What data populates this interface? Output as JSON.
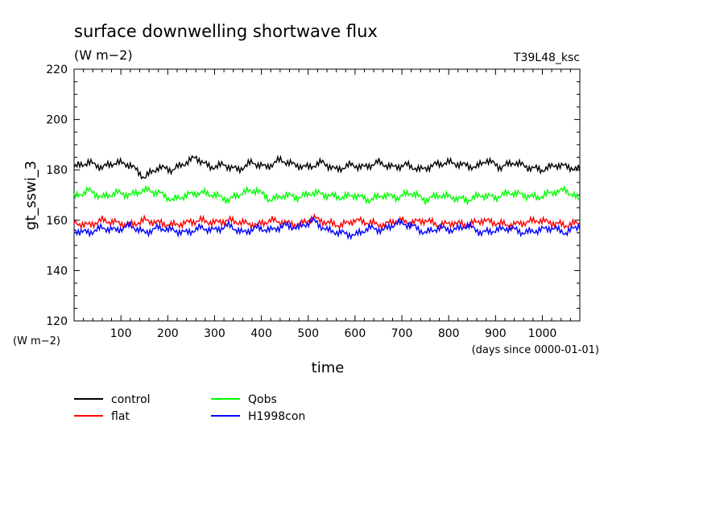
{
  "chart_data": {
    "type": "line",
    "title": "surface downwelling shortwave flux",
    "subtitle": "(W m−2)",
    "run_label": "T39L48_ksc",
    "xlabel": "time",
    "xunits": "(days since 0000-01-01)",
    "ylabel": "gt_sswi_3",
    "yunits": "(W m−2)",
    "xlim": [
      0,
      1080
    ],
    "ylim": [
      120,
      220
    ],
    "xticks": [
      100,
      200,
      300,
      400,
      500,
      600,
      700,
      800,
      900,
      1000
    ],
    "yticks": [
      120,
      140,
      160,
      180,
      200,
      220
    ],
    "grid": false,
    "legend_position": "bottom-left",
    "series": [
      {
        "name": "control",
        "color": "#000000",
        "x": [
          0,
          30,
          60,
          90,
          120,
          150,
          180,
          210,
          240,
          260,
          290,
          320,
          350,
          380,
          410,
          440,
          470,
          500,
          530,
          560,
          590,
          620,
          650,
          680,
          710,
          740,
          770,
          800,
          830,
          860,
          880,
          910,
          940,
          970,
          1000,
          1030,
          1060,
          1080
        ],
        "values": [
          181,
          183,
          181,
          183,
          182,
          177,
          181,
          180,
          183,
          185,
          181,
          182,
          180,
          183,
          181,
          184,
          182,
          181,
          183,
          180,
          182,
          181,
          183,
          181,
          182,
          180,
          182,
          183,
          182,
          181,
          184,
          181,
          183,
          181,
          180,
          182,
          181,
          180
        ]
      },
      {
        "name": "Qobs",
        "color": "#00ff00",
        "x": [
          0,
          30,
          60,
          90,
          120,
          150,
          180,
          210,
          240,
          270,
          300,
          330,
          360,
          390,
          420,
          450,
          480,
          510,
          540,
          570,
          600,
          630,
          660,
          690,
          720,
          750,
          780,
          810,
          840,
          870,
          900,
          930,
          960,
          990,
          1020,
          1050,
          1080
        ],
        "values": [
          169,
          172,
          169,
          171,
          170,
          172,
          171,
          168,
          170,
          171,
          170,
          168,
          171,
          172,
          168,
          170,
          169,
          171,
          170,
          169,
          170,
          168,
          170,
          169,
          171,
          168,
          170,
          169,
          168,
          170,
          169,
          171,
          170,
          169,
          171,
          172,
          168
        ]
      },
      {
        "name": "flat",
        "color": "#ff0000",
        "x": [
          0,
          30,
          60,
          90,
          120,
          150,
          180,
          210,
          240,
          270,
          300,
          330,
          360,
          390,
          420,
          450,
          480,
          510,
          540,
          570,
          600,
          630,
          660,
          690,
          720,
          750,
          780,
          810,
          840,
          870,
          900,
          930,
          960,
          990,
          1020,
          1050,
          1080
        ],
        "values": [
          159,
          158,
          160,
          159,
          158,
          160,
          159,
          158,
          159,
          160,
          159,
          160,
          159,
          158,
          160,
          159,
          158,
          161,
          159,
          158,
          160,
          159,
          158,
          160,
          159,
          160,
          158,
          159,
          158,
          160,
          159,
          158,
          159,
          160,
          159,
          158,
          159
        ]
      },
      {
        "name": "H1998con",
        "color": "#0000ff",
        "x": [
          0,
          30,
          60,
          90,
          120,
          150,
          180,
          210,
          240,
          270,
          300,
          330,
          360,
          390,
          420,
          450,
          480,
          510,
          540,
          570,
          600,
          630,
          660,
          690,
          720,
          750,
          780,
          810,
          840,
          870,
          900,
          930,
          960,
          990,
          1020,
          1050,
          1080
        ],
        "values": [
          156,
          155,
          157,
          156,
          158,
          155,
          157,
          156,
          155,
          157,
          156,
          158,
          155,
          157,
          156,
          158,
          157,
          160,
          156,
          155,
          154,
          157,
          156,
          159,
          158,
          155,
          157,
          156,
          158,
          155,
          156,
          157,
          155,
          156,
          157,
          155,
          158
        ]
      }
    ]
  }
}
